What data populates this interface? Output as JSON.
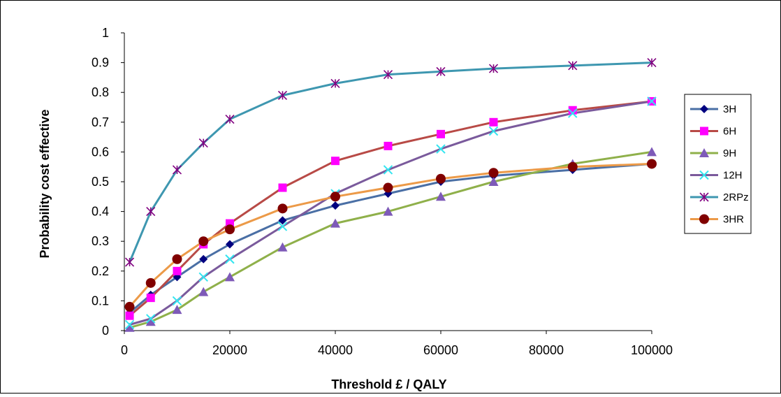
{
  "chart_data": {
    "type": "line",
    "xlabel": "Threshold £ / QALY",
    "ylabel": "Probability cost effective",
    "xlim": [
      0,
      100000
    ],
    "ylim": [
      0,
      1
    ],
    "x_ticks": [
      "0",
      "20000",
      "40000",
      "60000",
      "80000",
      "100000"
    ],
    "x_tick_values": [
      0,
      20000,
      40000,
      60000,
      80000,
      100000
    ],
    "y_ticks": [
      "0",
      "0.1",
      "0.2",
      "0.3",
      "0.4",
      "0.5",
      "0.6",
      "0.7",
      "0.8",
      "0.9",
      "1"
    ],
    "y_tick_values": [
      0,
      0.1,
      0.2,
      0.3,
      0.4,
      0.5,
      0.6,
      0.7,
      0.8,
      0.9,
      1.0
    ],
    "grid": false,
    "legend_position": "right",
    "x": [
      1000,
      5000,
      10000,
      15000,
      20000,
      30000,
      40000,
      50000,
      60000,
      70000,
      85000,
      100000
    ],
    "series": [
      {
        "name": "3H",
        "line_color": "#4A6FA5",
        "marker": "diamond",
        "marker_color": "#000080",
        "values": [
          0.06,
          0.12,
          0.18,
          0.24,
          0.29,
          0.37,
          0.42,
          0.46,
          0.5,
          0.52,
          0.54,
          0.56
        ]
      },
      {
        "name": "6H",
        "line_color": "#B84A46",
        "marker": "square",
        "marker_color": "#FF00FF",
        "values": [
          0.05,
          0.11,
          0.2,
          0.29,
          0.36,
          0.48,
          0.57,
          0.62,
          0.66,
          0.7,
          0.74,
          0.77
        ]
      },
      {
        "name": "9H",
        "line_color": "#8FB04A",
        "marker": "triangle",
        "marker_color": "#7E5AB8",
        "values": [
          0.01,
          0.03,
          0.07,
          0.13,
          0.18,
          0.28,
          0.36,
          0.4,
          0.45,
          0.5,
          0.56,
          0.6
        ]
      },
      {
        "name": "12H",
        "line_color": "#7A5A9C",
        "marker": "x",
        "marker_color": "#33E5F0",
        "values": [
          0.02,
          0.04,
          0.1,
          0.18,
          0.24,
          0.35,
          0.46,
          0.54,
          0.61,
          0.67,
          0.73,
          0.77
        ]
      },
      {
        "name": "2RPz",
        "line_color": "#3E97B0",
        "marker": "asterisk",
        "marker_color": "#800080",
        "values": [
          0.23,
          0.4,
          0.54,
          0.63,
          0.71,
          0.79,
          0.83,
          0.86,
          0.87,
          0.88,
          0.89,
          0.9
        ]
      },
      {
        "name": "3HR",
        "line_color": "#EC9A48",
        "marker": "circle",
        "marker_color": "#800000",
        "values": [
          0.08,
          0.16,
          0.24,
          0.3,
          0.34,
          0.41,
          0.45,
          0.48,
          0.51,
          0.53,
          0.55,
          0.56
        ]
      }
    ]
  }
}
